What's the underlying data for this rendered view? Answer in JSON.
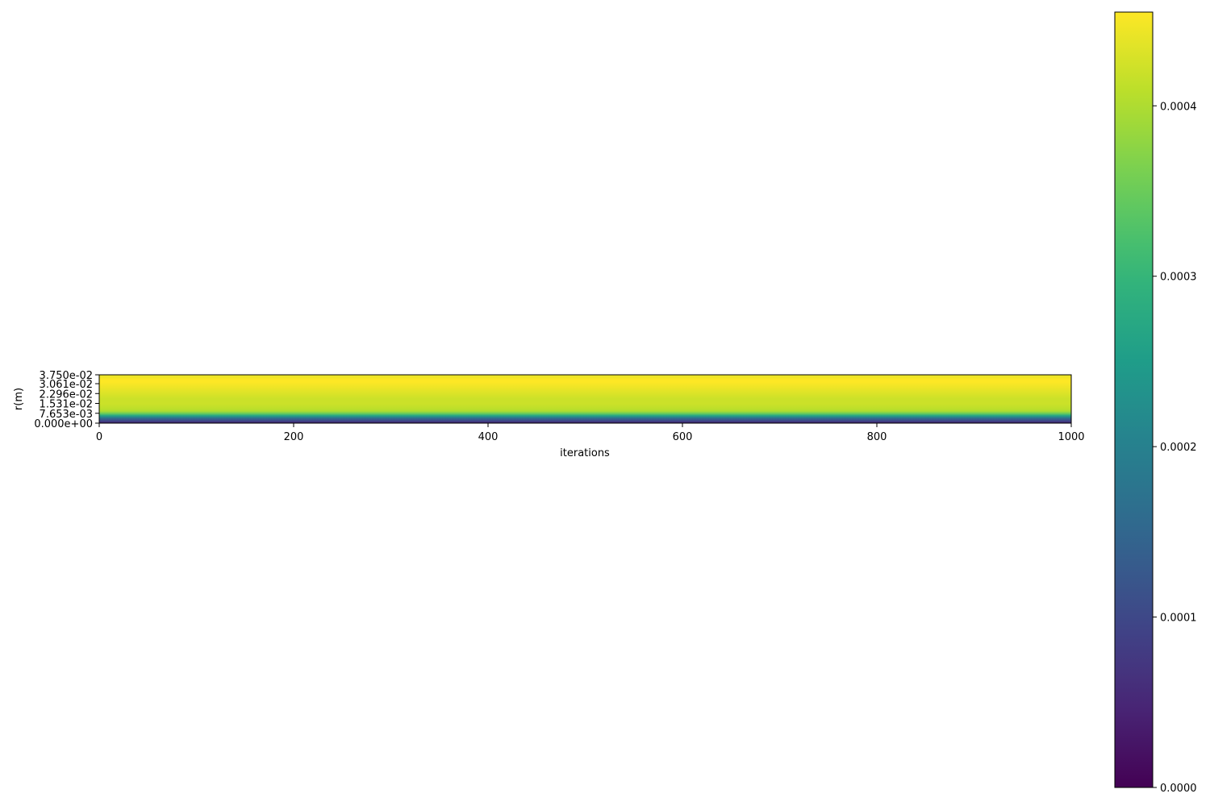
{
  "chart_data": {
    "type": "heatmap",
    "title": "",
    "xlabel": "iterations",
    "ylabel": "r(m)",
    "x_range": [
      0,
      1000
    ],
    "y_range": [
      0,
      0.0375
    ],
    "x_ticks": [
      0,
      200,
      400,
      600,
      800,
      1000
    ],
    "x_tick_labels": [
      "0",
      "200",
      "400",
      "600",
      "800",
      "1000"
    ],
    "y_ticks": [
      0,
      0.007653,
      0.01531,
      0.02296,
      0.03061,
      0.0375
    ],
    "y_tick_labels": [
      "0.000e+00",
      "7.653e-03",
      "1.531e-02",
      "2.296e-02",
      "3.061e-02",
      "3.750e-02"
    ],
    "colormap": "viridis",
    "colorbar": {
      "range": [
        0,
        0.000455
      ],
      "ticks": [
        0,
        0.0001,
        0.0002,
        0.0003,
        0.0004
      ],
      "tick_labels": [
        "0.0000",
        "0.0001",
        "0.0002",
        "0.0003",
        "0.0004"
      ]
    },
    "note": "value is constant along iterations; varies only with r",
    "radial_profile": {
      "r": [
        0,
        0.0019,
        0.0038,
        0.0057,
        0.0075,
        0.0094,
        0.0113,
        0.015,
        0.0188,
        0.0225,
        0.0263,
        0.03,
        0.0319,
        0.0338,
        0.0356,
        0.0375
      ],
      "value": [
        4e-05,
        0.0001,
        0.00016,
        0.00026,
        0.00035,
        0.0004,
        0.00041,
        0.00042,
        0.00042,
        0.00043,
        0.00044,
        0.00045,
        0.000455,
        0.000455,
        0.000445,
        0.00044
      ]
    }
  }
}
